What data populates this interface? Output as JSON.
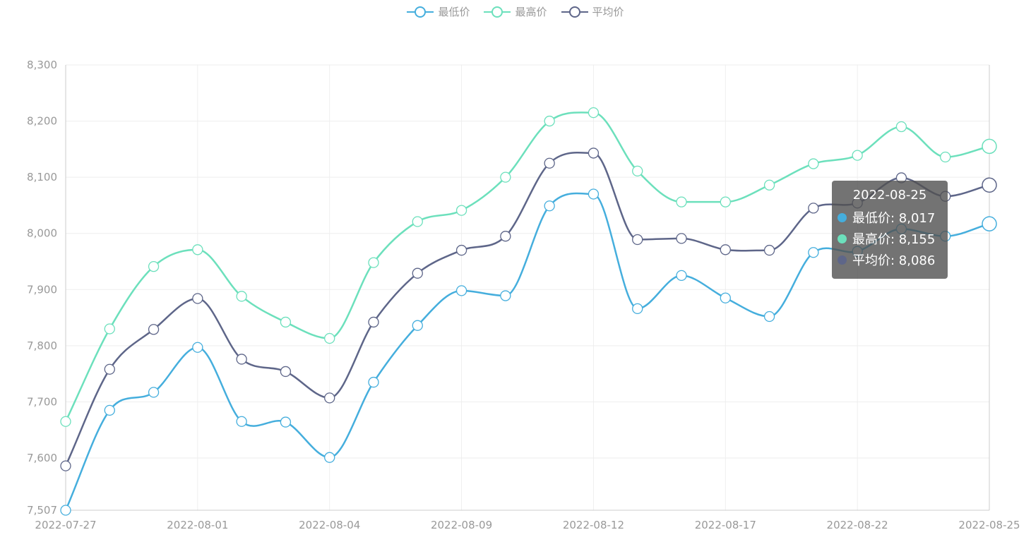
{
  "legend": {
    "items": [
      {
        "label": "最低价",
        "color": "#45aedd"
      },
      {
        "label": "最高价",
        "color": "#6ce0bc"
      },
      {
        "label": "平均价",
        "color": "#5e6689"
      }
    ]
  },
  "tooltip": {
    "date": "2022-08-25",
    "rows": [
      {
        "label": "最低价: 8,017",
        "color": "#45aedd"
      },
      {
        "label": "最高价: 8,155",
        "color": "#6ce0bc"
      },
      {
        "label": "平均价: 8,086",
        "color": "#5e6689"
      }
    ]
  },
  "chart_data": {
    "type": "line",
    "x": [
      "2022-07-27",
      "2022-07-28",
      "2022-07-29",
      "2022-08-01",
      "2022-08-02",
      "2022-08-03",
      "2022-08-04",
      "2022-08-05",
      "2022-08-08",
      "2022-08-09",
      "2022-08-10",
      "2022-08-11",
      "2022-08-12",
      "2022-08-15",
      "2022-08-16",
      "2022-08-17",
      "2022-08-18",
      "2022-08-19",
      "2022-08-22",
      "2022-08-23",
      "2022-08-24",
      "2022-08-25"
    ],
    "x_tick_labels": [
      "2022-07-27",
      "2022-08-01",
      "2022-08-04",
      "2022-08-09",
      "2022-08-12",
      "2022-08-17",
      "2022-08-22",
      "2022-08-25"
    ],
    "y_ticks": [
      7507,
      7600,
      7700,
      7800,
      7900,
      8000,
      8100,
      8200,
      8300
    ],
    "y_tick_labels": [
      "7,507",
      "7,600",
      "7,700",
      "7,800",
      "7,900",
      "8,000",
      "8,100",
      "8,200",
      "8,300"
    ],
    "ylim": [
      7507,
      8300
    ],
    "grid": true,
    "legend_position": "top-center",
    "smooth": true,
    "series": [
      {
        "name": "最低价",
        "color": "#45aedd",
        "values": [
          7507,
          7685,
          7717,
          7797,
          7665,
          7664,
          7601,
          7735,
          7836,
          7898,
          7889,
          8049,
          8070,
          7866,
          7925,
          7885,
          7852,
          7966,
          7968,
          8008,
          7995,
          8017
        ]
      },
      {
        "name": "最高价",
        "color": "#6ce0bc",
        "values": [
          7665,
          7830,
          7941,
          7971,
          7888,
          7842,
          7813,
          7948,
          8021,
          8041,
          8100,
          8200,
          8215,
          8111,
          8056,
          8056,
          8086,
          8124,
          8139,
          8190,
          8136,
          8155
        ]
      },
      {
        "name": "平均价",
        "color": "#5e6689",
        "values": [
          7586,
          7758,
          7829,
          7884,
          7776,
          7754,
          7707,
          7842,
          7929,
          7970,
          7995,
          8125,
          8143,
          7989,
          7991,
          7971,
          7970,
          8045,
          8054,
          8099,
          8066,
          8086
        ]
      }
    ],
    "highlighted_index": 21
  }
}
